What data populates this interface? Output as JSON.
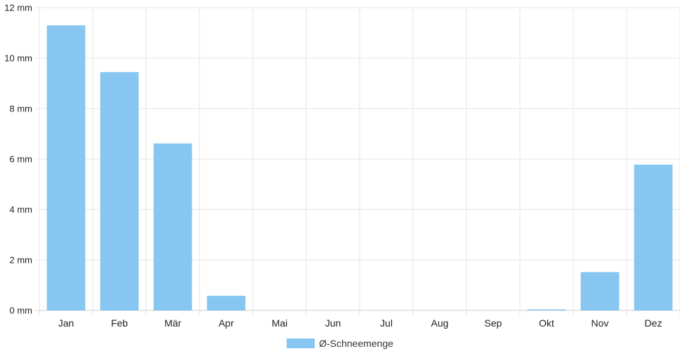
{
  "chart_data": {
    "type": "bar",
    "categories": [
      "Jan",
      "Feb",
      "Mär",
      "Apr",
      "Mai",
      "Jun",
      "Jul",
      "Aug",
      "Sep",
      "Okt",
      "Nov",
      "Dez"
    ],
    "series": [
      {
        "name": "Ø-Schneemenge",
        "values": [
          11.3,
          9.45,
          6.62,
          0.58,
          0,
          0,
          0,
          0,
          0,
          0.04,
          1.52,
          5.78
        ],
        "color": "#87c6f1"
      }
    ],
    "y_ticks": [
      "0 mm",
      "2 mm",
      "4 mm",
      "6 mm",
      "8 mm",
      "10 mm",
      "12 mm"
    ],
    "ylim": [
      0,
      12
    ],
    "grid": true,
    "legend_position": "bottom-center",
    "grid_color": "#e5e5e5"
  }
}
